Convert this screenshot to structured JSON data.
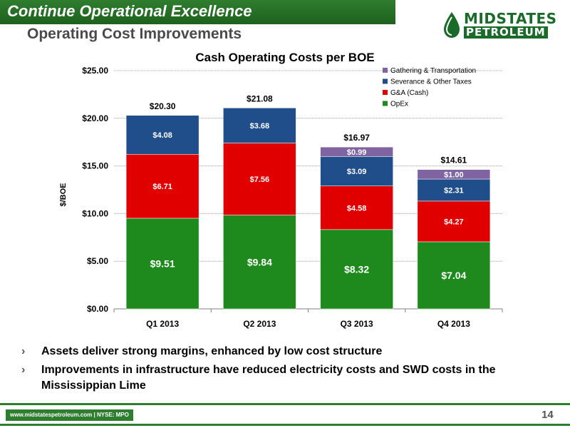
{
  "header": {
    "title": "Continue Operational Excellence",
    "subtitle": "Operating Cost Improvements"
  },
  "logo": {
    "line1": "MIDSTATES",
    "line2": "PETROLEUM",
    "brand_color": "#1a6a2a"
  },
  "chart_data": {
    "type": "bar",
    "stacked": true,
    "title": "Cash Operating Costs per BOE",
    "xlabel": "",
    "ylabel": "$/BOE",
    "ylim": [
      0,
      25
    ],
    "yticks": [
      "$0.00",
      "$5.00",
      "$10.00",
      "$15.00",
      "$20.00",
      "$25.00"
    ],
    "ytick_values": [
      0,
      5,
      10,
      15,
      20,
      25
    ],
    "grid": true,
    "legend_position": "top-right",
    "categories": [
      "Q1 2013",
      "Q2 2013",
      "Q3 2013",
      "Q4 2013"
    ],
    "totals": [
      "$20.30",
      "$21.08",
      "$16.97",
      "$14.61"
    ],
    "series": [
      {
        "name": "OpEx",
        "color": "#1e8a1e",
        "values": [
          9.51,
          9.84,
          8.32,
          7.04
        ],
        "labels": [
          "$9.51",
          "$9.84",
          "$8.32",
          "$7.04"
        ]
      },
      {
        "name": "G&A (Cash)",
        "color": "#e00000",
        "values": [
          6.71,
          7.56,
          4.58,
          4.27
        ],
        "labels": [
          "$6.71",
          "$7.56",
          "$4.58",
          "$4.27"
        ]
      },
      {
        "name": "Severance & Other Taxes",
        "color": "#1f4e8a",
        "values": [
          4.08,
          3.68,
          3.09,
          2.31
        ],
        "labels": [
          "$4.08",
          "$3.68",
          "$3.09",
          "$2.31"
        ]
      },
      {
        "name": "Gathering & Transportation",
        "color": "#8064a2",
        "values": [
          0,
          0,
          0.99,
          1.0
        ],
        "labels": [
          "",
          "",
          "$0.99",
          "$1.00"
        ]
      }
    ]
  },
  "bullets": [
    "Assets deliver strong margins, enhanced by low cost structure",
    "Improvements in infrastructure have reduced electricity costs and SWD costs in the Mississippian Lime"
  ],
  "bullet_marker": "›",
  "footer": {
    "text": "www.midstatespetroleum.com | NYSE: MPO",
    "page_number": "14"
  }
}
